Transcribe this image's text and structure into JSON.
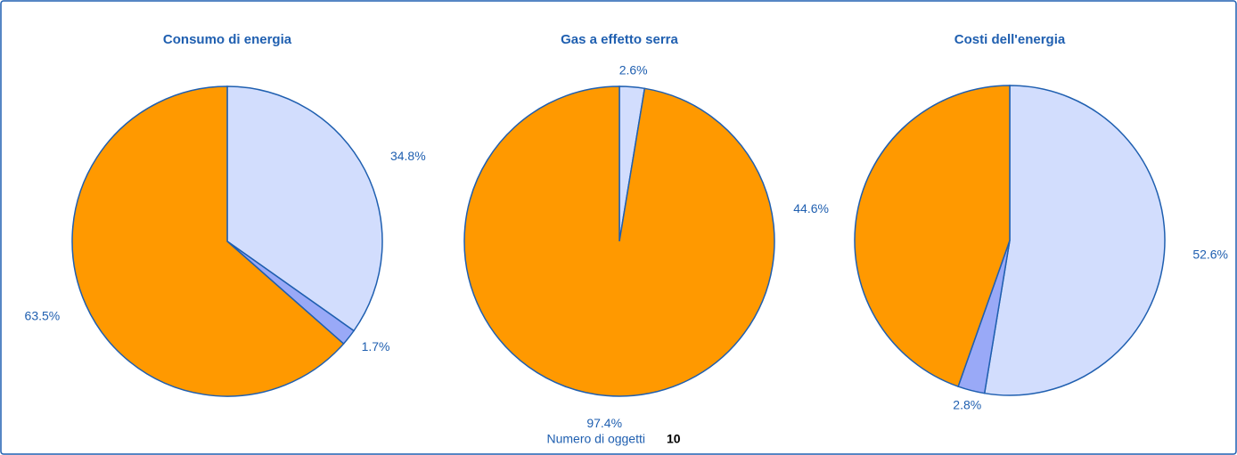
{
  "chart_data": [
    {
      "type": "pie",
      "title": "Consumo di energia",
      "values": [
        34.8,
        1.7,
        63.5
      ],
      "value_labels": [
        "34.8%",
        "1.7%",
        "63.5%"
      ],
      "colors": [
        "#d2ddfd",
        "#99a9f7",
        "#ff9900"
      ]
    },
    {
      "type": "pie",
      "title": "Gas a effetto serra",
      "values": [
        2.6,
        97.4
      ],
      "value_labels": [
        "2.6%",
        "97.4%"
      ],
      "colors": [
        "#d2ddfd",
        "#ff9900"
      ]
    },
    {
      "type": "pie",
      "title": "Costi dell'energia",
      "values": [
        52.6,
        2.8,
        44.6
      ],
      "value_labels": [
        "52.6%",
        "2.8%",
        "44.6%"
      ],
      "colors": [
        "#d2ddfd",
        "#99a9f7",
        "#ff9900"
      ]
    }
  ],
  "footer": {
    "label": "Numero di oggetti",
    "value": 10
  }
}
